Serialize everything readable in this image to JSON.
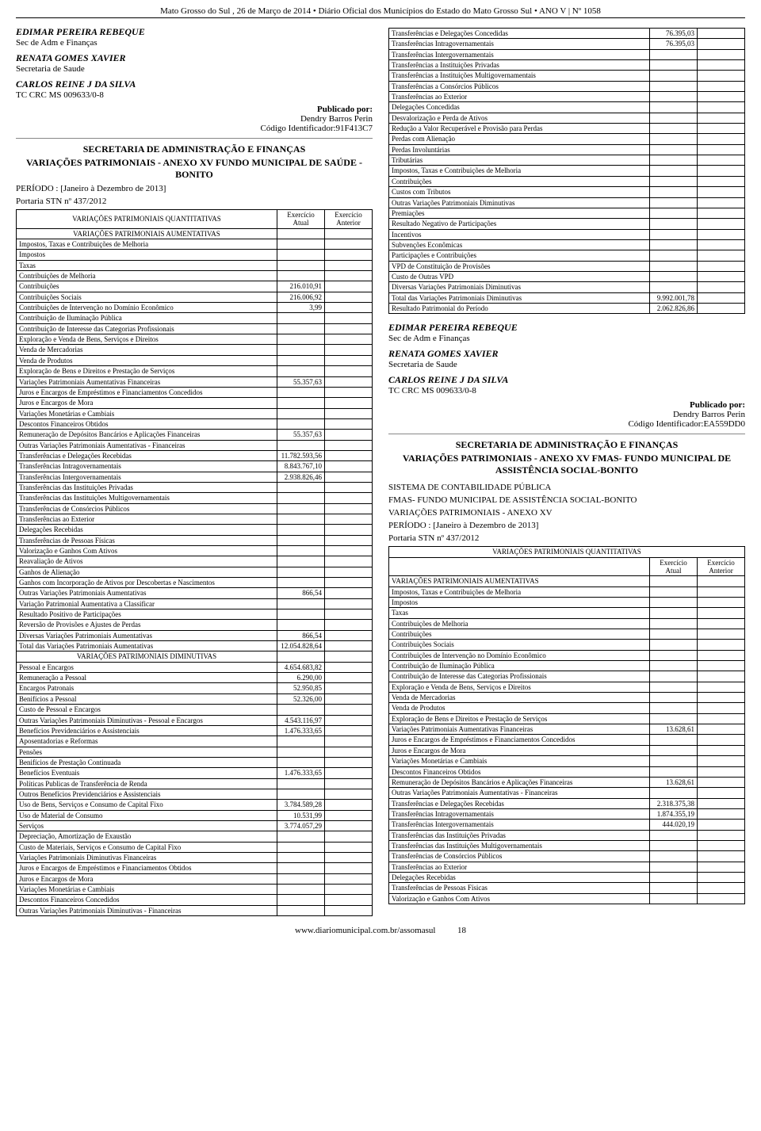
{
  "header": {
    "text": "Mato Grosso do Sul , 26 de Março de 2014 • Diário Oficial dos Municípios do Estado do Mato Grosso Sul • ANO V | Nº 1058"
  },
  "footer": {
    "url": "www.diariomunicipal.com.br/assomasul",
    "page": "18"
  },
  "leftCol": {
    "sig1_name": "EDIMAR PEREIRA REBEQUE",
    "sig1_role": "Sec de Adm e Finanças",
    "sig2_name": "RENATA GOMES XAVIER",
    "sig2_role": "Secretaria de Saude",
    "sig3_name": "CARLOS REINE J DA SILVA",
    "sig3_role": "TC CRC MS 009633/0-8",
    "pub_label": "Publicado por:",
    "pub_by": "Dendry Barros Perin",
    "pub_code": "Código Identificador:91F413C7",
    "sec_title1": "SECRETARIA DE ADMINISTRAÇÃO E FINANÇAS",
    "sec_title2": "VARIAÇÕES PATRIMONIAIS - ANEXO XV FUNDO MUNICIPAL DE SAÚDE - BONITO",
    "periodo": "PERÍODO : [Janeiro à Dezembro de 2013]",
    "portaria": "Portaria STN nº 437/2012",
    "table": {
      "head_label": "VARIAÇÕES PATRIMONIAIS QUANTITATIVAS",
      "col_atual": "Exercício Atual",
      "col_anterior": "Exercício Anterior",
      "aumentativas": "VARIAÇÕES PATRIMONIAIS AUMENTATIVAS",
      "diminutivas": "VARIAÇÕES PATRIMONIAIS DIMINUTIVAS",
      "rows1": [
        {
          "label": "Impostos, Taxas e Contribuições de Melhoria",
          "v": ""
        },
        {
          "label": "Impostos",
          "v": ""
        },
        {
          "label": "Taxas",
          "v": ""
        },
        {
          "label": "Contribuições de Melhoria",
          "v": ""
        },
        {
          "label": "Contribuições",
          "v": "216.010,91"
        },
        {
          "label": "Contribuições Sociais",
          "v": "216.006,92"
        },
        {
          "label": "Contribuições de Intervenção no Domínio Econômico",
          "v": "3,99"
        },
        {
          "label": "Contribuição de Iluminação Pública",
          "v": ""
        },
        {
          "label": "Contribuição de Interesse das Categorias Profissionais",
          "v": ""
        },
        {
          "label": "Exploração e Venda de Bens, Serviços e Direitos",
          "v": ""
        },
        {
          "label": "Venda de Mercadorias",
          "v": ""
        },
        {
          "label": "Venda de Produtos",
          "v": ""
        },
        {
          "label": "Exploração de Bens e Direitos e Prestação de Serviços",
          "v": ""
        },
        {
          "label": "Variações Patrimoniais Aumentativas Financeiras",
          "v": "55.357,63"
        },
        {
          "label": "Juros e Encargos de Empréstimos e Financiamentos Concedidos",
          "v": ""
        },
        {
          "label": "Juros e Encargos de Mora",
          "v": ""
        },
        {
          "label": "Variações Monetárias e Cambiais",
          "v": ""
        },
        {
          "label": "Descontos Financeiros Obtidos",
          "v": ""
        },
        {
          "label": "Remuneração de Depósitos Bancários e Aplicações Financeiras",
          "v": "55.357,63"
        },
        {
          "label": "Outras Variações Patrimoniais Aumentativas - Financeiras",
          "v": ""
        },
        {
          "label": "Transferências e Delegações Recebidas",
          "v": "11.782.593,56"
        },
        {
          "label": "Transferências Intragovernamentais",
          "v": "8.843.767,10"
        },
        {
          "label": "Transferências Intergovernamentais",
          "v": "2.938.826,46"
        },
        {
          "label": "Transferências das Instituições Privadas",
          "v": ""
        },
        {
          "label": "Transferências das Instituições Multigovernamentais",
          "v": ""
        },
        {
          "label": "Transferências de Consórcios Públicos",
          "v": ""
        },
        {
          "label": "Transferências ao Exterior",
          "v": ""
        },
        {
          "label": "Delegações Recebidas",
          "v": ""
        },
        {
          "label": "Transferências de Pessoas Físicas",
          "v": ""
        },
        {
          "label": "Valorização e Ganhos Com Ativos",
          "v": ""
        },
        {
          "label": "Reavaliação de Ativos",
          "v": ""
        },
        {
          "label": "Ganhos de Alienação",
          "v": ""
        },
        {
          "label": "Ganhos com Incorporação de Ativos por Descobertas e Nascimentos",
          "v": ""
        },
        {
          "label": "Outras Variações Patrimoniais Aumentativas",
          "v": "866,54"
        },
        {
          "label": "Variação Patrimonial Aumentativa a Classificar",
          "v": ""
        },
        {
          "label": "Resultado Positivo de Participações",
          "v": ""
        },
        {
          "label": "Reversão de Provisões e Ajustes de Perdas",
          "v": ""
        },
        {
          "label": "Diversas Variações Patrimoniais Aumentativas",
          "v": "866,54"
        },
        {
          "label": "Total das Variações Patrimoniais Aumentativas",
          "v": "12.054.828,64"
        }
      ],
      "rows2": [
        {
          "label": "Pessoal e Encargos",
          "v": "4.654.683,82"
        },
        {
          "label": "Remuneração a Pessoal",
          "v": "6.290,00"
        },
        {
          "label": "Encargos Patronais",
          "v": "52.950,85"
        },
        {
          "label": "Benifícios a Pessoal",
          "v": "52.326,00"
        },
        {
          "label": "Custo de Pessoal e Encargos",
          "v": ""
        },
        {
          "label": "Outras Variações Patrimoniais Diminutivas - Pessoal e Encargos",
          "v": "4.543.116,97"
        },
        {
          "label": "Benefícios Previdenciários e Assistenciais",
          "v": "1.476.333,65"
        },
        {
          "label": "Aposentadorias e Reformas",
          "v": ""
        },
        {
          "label": "Pensões",
          "v": ""
        },
        {
          "label": "Benifícios de Prestação Continuada",
          "v": ""
        },
        {
          "label": "Benefícios Eventuais",
          "v": "1.476.333,65"
        },
        {
          "label": "Políticas Publicas de Transferência de Renda",
          "v": ""
        },
        {
          "label": "Outros Benefícios Previdenciários e Assistenciais",
          "v": ""
        },
        {
          "label": "Uso de Bens, Serviços e Consumo de Capital Fixo",
          "v": "3.784.589,28"
        },
        {
          "label": "Uso de Material de Consumo",
          "v": "10.531,99"
        },
        {
          "label": "Serviços",
          "v": "3.774.057,29"
        },
        {
          "label": "Depreciação, Amortização de Exaustão",
          "v": ""
        },
        {
          "label": "Custo de Materiais, Serviços e Consumo de Capital Fixo",
          "v": ""
        },
        {
          "label": "Variações Patrimoniais Diminutivas Financeiras",
          "v": ""
        },
        {
          "label": "Juros e Encargos de Empréstimos e Financiamentos Obtidos",
          "v": ""
        },
        {
          "label": "Juros e Encargos de Mora",
          "v": ""
        },
        {
          "label": "Variações Monetárias e Cambiais",
          "v": ""
        },
        {
          "label": "Descontos Financeiros Concedidos",
          "v": ""
        },
        {
          "label": "Outras Variações Patrimoniais Diminutivas - Financeiras",
          "v": ""
        }
      ]
    }
  },
  "rightCol": {
    "topTableRows": [
      {
        "label": "Transferências e Delegações Concedidas",
        "v": "76.395,03"
      },
      {
        "label": "Transferências Intragovernamentais",
        "v": "76.395,03"
      },
      {
        "label": "Transferências Intergovernamentais",
        "v": ""
      },
      {
        "label": "Transferências a Instituições Privadas",
        "v": ""
      },
      {
        "label": "Transferências a Instituições Multigovernamentais",
        "v": ""
      },
      {
        "label": "Transferências a Consórcios Públicos",
        "v": ""
      },
      {
        "label": "Transferências ao Exterior",
        "v": ""
      },
      {
        "label": "Delegações Concedidas",
        "v": ""
      },
      {
        "label": "Desvalorização e Perda de Ativos",
        "v": ""
      },
      {
        "label": "Redução a Valor Recuperável e Provisão para Perdas",
        "v": ""
      },
      {
        "label": "Perdas com Alienação",
        "v": ""
      },
      {
        "label": "Perdas Involuntárias",
        "v": ""
      },
      {
        "label": "Tributárias",
        "v": ""
      },
      {
        "label": "Impostos, Taxas e Contribuições de Melhoria",
        "v": ""
      },
      {
        "label": "Contribuições",
        "v": ""
      },
      {
        "label": "Custos com Tributos",
        "v": ""
      },
      {
        "label": "Outras Variações Patrimoniais Diminutivas",
        "v": ""
      },
      {
        "label": "Premiações",
        "v": ""
      },
      {
        "label": "Resultado Negativo de Participações",
        "v": ""
      },
      {
        "label": "Incentivos",
        "v": ""
      },
      {
        "label": "Subvenções Econômicas",
        "v": ""
      },
      {
        "label": "Participações e Contribuições",
        "v": ""
      },
      {
        "label": "VPD de Constituição de Provisões",
        "v": ""
      },
      {
        "label": "Custo de Outras VPD",
        "v": ""
      },
      {
        "label": "Diversas Variações Patrimoniais Diminutivas",
        "v": ""
      },
      {
        "label": "Total das Variações Patrimoniais Diminutivas",
        "v": "9.992.001,78"
      },
      {
        "label": "Resultado Patrimonial do Período",
        "v": "2.062.826,86"
      }
    ],
    "sig1_name": "EDIMAR PEREIRA REBEQUE",
    "sig1_role": "Sec de Adm e Finanças",
    "sig2_name": "RENATA GOMES XAVIER",
    "sig2_role": "Secretaria de Saude",
    "sig3_name": "CARLOS REINE J DA SILVA",
    "sig3_role": "TC CRC MS 009633/0-8",
    "pub_label": "Publicado por:",
    "pub_by": "Dendry Barros Perin",
    "pub_code": "Código Identificador:EA559DD0",
    "sec_title1": "SECRETARIA DE ADMINISTRAÇÃO E FINANÇAS",
    "sec_title2": "VARIAÇÕES PATRIMONIAIS - ANEXO XV FMAS- FUNDO MUNICIPAL DE ASSISTÊNCIA SOCIAL-BONITO",
    "sistema": "SISTEMA DE CONTABILIDADE PÚBLICA",
    "fmas": "FMAS- FUNDO MUNICIPAL DE ASSISTÊNCIA SOCIAL-BONITO",
    "var_anexo": "VARIAÇÕES PATRIMONIAIS - ANEXO XV",
    "periodo": "PERÍODO : [Janeiro à Dezembro de 2013]",
    "portaria": "Portaria STN nº 437/2012",
    "table": {
      "head_label": "VARIAÇÕES PATRIMONIAIS QUANTITATIVAS",
      "col_atual": "Exercício Atual",
      "col_anterior": "Exercício Anterior",
      "aumentativas": "VARIAÇÕES PATRIMONIAIS AUMENTATIVAS",
      "rows": [
        {
          "label": "Impostos, Taxas e Contribuições de Melhoria",
          "v": ""
        },
        {
          "label": "Impostos",
          "v": ""
        },
        {
          "label": "Taxas",
          "v": ""
        },
        {
          "label": "Contribuições de Melhoria",
          "v": ""
        },
        {
          "label": "Contribuições",
          "v": ""
        },
        {
          "label": "Contribuições Sociais",
          "v": ""
        },
        {
          "label": "Contribuições de Intervenção no Domínio Econômico",
          "v": ""
        },
        {
          "label": "Contribuição de Iluminação Pública",
          "v": ""
        },
        {
          "label": "Contribuição de Interesse das Categorias Profissionais",
          "v": ""
        },
        {
          "label": "Exploração e Venda de Bens, Serviços e Direitos",
          "v": ""
        },
        {
          "label": "Venda de Mercadorias",
          "v": ""
        },
        {
          "label": "Venda de Produtos",
          "v": ""
        },
        {
          "label": "Exploração de Bens e Direitos e Prestação de Serviços",
          "v": ""
        },
        {
          "label": "Variações Patrimoniais Aumentativas Financeiras",
          "v": "13.628,61"
        },
        {
          "label": "Juros e Encargos de Empréstimos e Financiamentos Concedidos",
          "v": ""
        },
        {
          "label": "Juros e Encargos de Mora",
          "v": ""
        },
        {
          "label": "Variações Monetárias e Cambiais",
          "v": ""
        },
        {
          "label": "Descontos Financeiros Obtidos",
          "v": ""
        },
        {
          "label": "Remuneração de Depósitos Bancários e Aplicações Financeiras",
          "v": "13.628,61"
        },
        {
          "label": "Outras Variações Patrimoniais Aumentativas - Financeiras",
          "v": ""
        },
        {
          "label": "Transferências e Delegações Recebidas",
          "v": "2.318.375,38"
        },
        {
          "label": "Transferências Intragovernamentais",
          "v": "1.874.355,19"
        },
        {
          "label": "Transferências Intergovernamentais",
          "v": "444.020,19"
        },
        {
          "label": "Transferências das Instituições Privadas",
          "v": ""
        },
        {
          "label": "Transferências das Instituições Multigovernamentais",
          "v": ""
        },
        {
          "label": "Transferências de Consórcios Públicos",
          "v": ""
        },
        {
          "label": "Transferências ao Exterior",
          "v": ""
        },
        {
          "label": "Delegações Recebidas",
          "v": ""
        },
        {
          "label": "Transferências de Pessoas Físicas",
          "v": ""
        },
        {
          "label": "Valorização e Ganhos Com Ativos",
          "v": ""
        }
      ]
    }
  }
}
